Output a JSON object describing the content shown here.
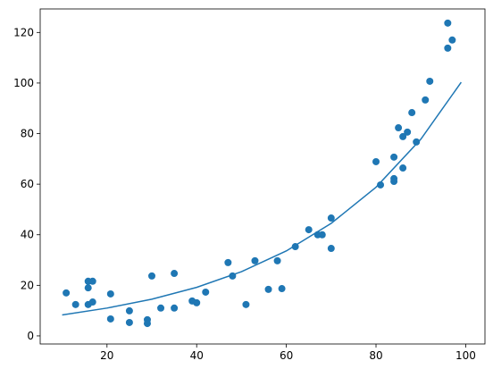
{
  "chart_data": {
    "type": "scatter",
    "xlim": [
      5.1,
      104.3
    ],
    "ylim": [
      -3.2,
      129.3
    ],
    "xticks": [
      20,
      40,
      60,
      80,
      100
    ],
    "yticks": [
      0,
      20,
      40,
      60,
      80,
      100,
      120
    ],
    "series": [
      {
        "style": "markers",
        "color": "#1f77b4",
        "x": [
          10.9,
          13,
          15.8,
          15.8,
          16.8,
          15.8,
          16.8,
          20.8,
          20.8,
          25,
          25,
          29,
          29,
          30,
          32,
          35,
          35,
          39,
          40,
          42,
          47,
          48,
          51,
          53,
          56,
          58,
          59,
          62,
          65,
          67,
          68,
          70,
          70,
          80,
          81,
          84,
          84,
          84,
          85,
          86,
          86,
          87,
          88,
          89,
          91,
          92,
          96,
          96,
          97
        ],
        "values": [
          17,
          12.4,
          21.6,
          19,
          21.6,
          12.4,
          13.4,
          16.6,
          6.7,
          9.9,
          5.3,
          6.4,
          4.9,
          23.7,
          11,
          24.7,
          11,
          13.8,
          13.1,
          17.3,
          29,
          23.7,
          12.4,
          29.7,
          18.4,
          29.7,
          18.7,
          35.3,
          42,
          40,
          40,
          46.6,
          34.6,
          68.9,
          59.7,
          62.2,
          61.1,
          70.7,
          82.3,
          78.8,
          66.4,
          80.6,
          88.3,
          76.7,
          93.3,
          100.7,
          113.8,
          123.7,
          117
        ]
      },
      {
        "style": "line",
        "color": "#1f77b4",
        "x": [
          10,
          20,
          30,
          40,
          50,
          60,
          70,
          80,
          90,
          99
        ],
        "values": [
          8.3,
          11,
          14.5,
          19.2,
          25.4,
          33.6,
          44.5,
          58.8,
          77.8,
          100.3
        ]
      }
    ]
  }
}
